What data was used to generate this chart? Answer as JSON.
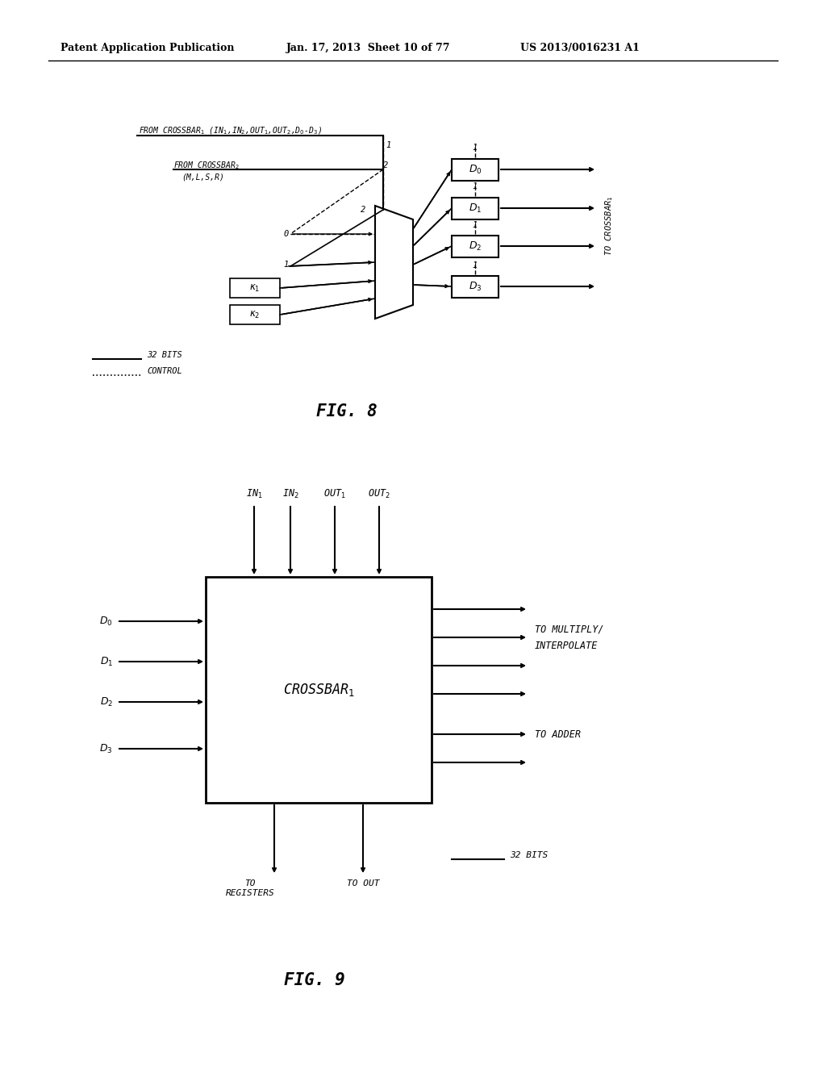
{
  "background_color": "#ffffff",
  "header_left": "Patent Application Publication",
  "header_center": "Jan. 17, 2013  Sheet 10 of 77",
  "header_right": "US 2013/0016231 A1",
  "fig8_title": "FIG. 8",
  "fig9_title": "FIG. 9",
  "text_color": "#000000"
}
